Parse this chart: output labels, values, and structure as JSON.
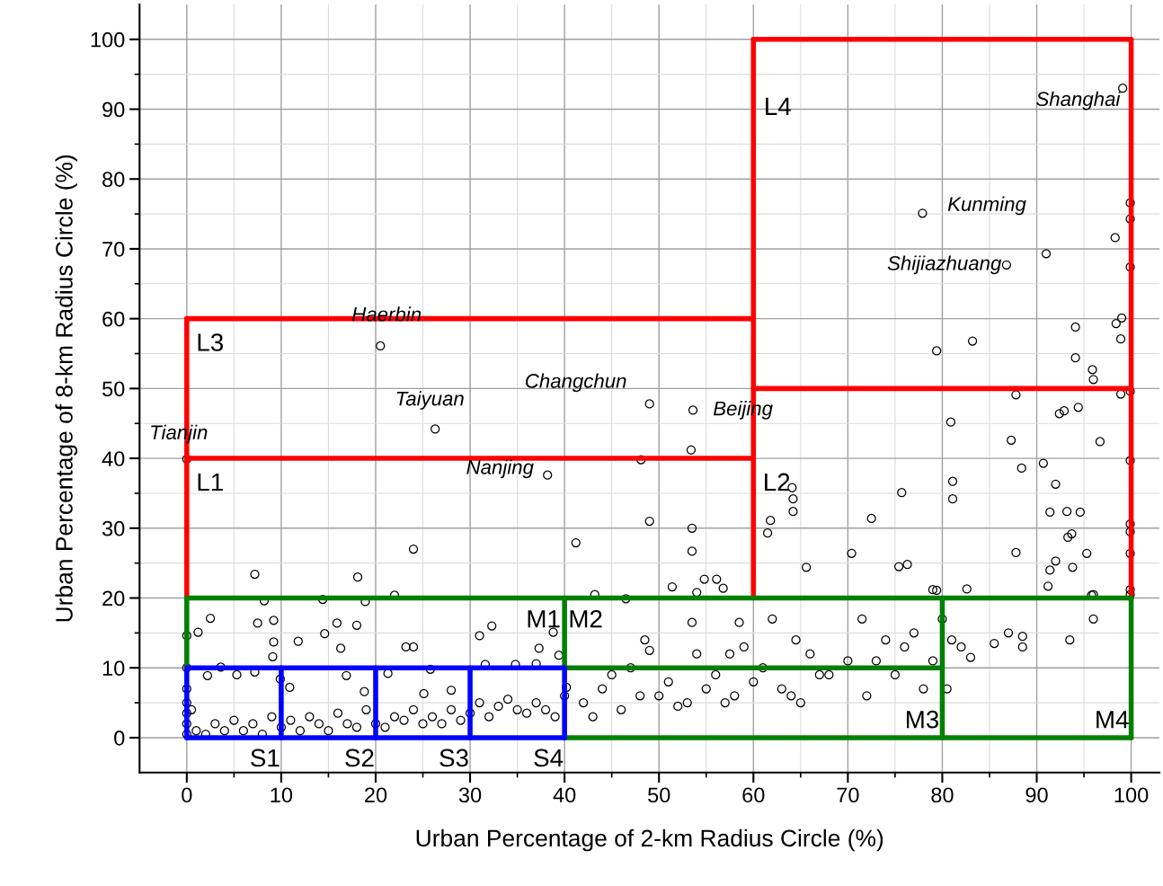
{
  "chart_data": {
    "type": "scatter",
    "xlabel": "Urban Percentage of 2-km Radius Circle (%)",
    "ylabel": "Urban Percentage of 8-km Radius Circle (%)",
    "xlim": [
      -5,
      103
    ],
    "ylim": [
      -5,
      105
    ],
    "xticks": [
      0,
      10,
      20,
      30,
      40,
      50,
      60,
      70,
      80,
      90,
      100
    ],
    "yticks": [
      0,
      10,
      20,
      30,
      40,
      50,
      60,
      70,
      80,
      90,
      100
    ],
    "grid": true,
    "series": [
      {
        "color": "#000000",
        "marker": "circle",
        "x": [
          99.1,
          99.9,
          99.9,
          98.3,
          91.0,
          86.8,
          77.9,
          99.9,
          99.0,
          98.4,
          94.1,
          98.9,
          83.2,
          79.4,
          94.1,
          95.9,
          96.0,
          98.9,
          99.9,
          87.8,
          94.4,
          92.9,
          92.4,
          80.9,
          96.7,
          87.3,
          90.7,
          99.9,
          88.4,
          81.1,
          92.0,
          81.1,
          75.7,
          91.4,
          93.2,
          94.6,
          72.5,
          99.9,
          93.7,
          93.3,
          99.9,
          95.3,
          87.8,
          70.4,
          99.9,
          92.0,
          91.4,
          93.8,
          76.3,
          75.4,
          65.6,
          91.2,
          99.9,
          99.9,
          95.8,
          79.0,
          79.4,
          82.6,
          61.8,
          61.5,
          64.1,
          64.2,
          64.2,
          53.5,
          49.0,
          48.1,
          53.4,
          53.6,
          49.0,
          41.2,
          53.5,
          54.8,
          56.1,
          56.8,
          51.4,
          54.0,
          43.2,
          46.5,
          20.5,
          26.3,
          38.2,
          0.0,
          24.0,
          7.2,
          18.1,
          22.0,
          8.2,
          18.9,
          14.4,
          2.5,
          7.5,
          9.2,
          15.9,
          18.0,
          14.6,
          11.8,
          9.2,
          1.2,
          0.0,
          23.2,
          24.0,
          32.3,
          31.0,
          16.3,
          37.3,
          38.8,
          9.1,
          7.2,
          3.6,
          2.2,
          5.3,
          9.9,
          10.9,
          16.9,
          18.8,
          21.3,
          25.1,
          25.8,
          28.0,
          31.6,
          34.8,
          37.0,
          39.4,
          40.2,
          1,
          2,
          3,
          4,
          5,
          6,
          7,
          8,
          9,
          10,
          11,
          12,
          13,
          14,
          15,
          16,
          17,
          18,
          19,
          20,
          21,
          22,
          23,
          24,
          25,
          26,
          27,
          28,
          29,
          30,
          31,
          32,
          33,
          34,
          35,
          36,
          37,
          38,
          39,
          40,
          0,
          0,
          0,
          0,
          0,
          0,
          0.5,
          42,
          43,
          44,
          45,
          46,
          47,
          48,
          48.5,
          49,
          50,
          51,
          52,
          53,
          53.5,
          54,
          55,
          56,
          57,
          57.5,
          58,
          58.5,
          59,
          60,
          61,
          62,
          63,
          64,
          64.5,
          65,
          66,
          67,
          68,
          70,
          71.5,
          72,
          73,
          74,
          75,
          76,
          77,
          78,
          79,
          80.5,
          80,
          81,
          82,
          83,
          85.5,
          87,
          88.5,
          88.5,
          93.5,
          96,
          96
        ],
        "values": [
          93.0,
          76.6,
          74.3,
          71.6,
          69.3,
          67.7,
          75.1,
          67.4,
          60.1,
          59.3,
          58.8,
          57.1,
          56.8,
          55.4,
          54.4,
          52.7,
          51.3,
          49.2,
          49.6,
          49.1,
          47.3,
          46.8,
          46.4,
          45.2,
          42.4,
          42.6,
          39.3,
          39.7,
          38.6,
          36.7,
          36.3,
          34.2,
          35.1,
          32.3,
          32.4,
          32.3,
          31.4,
          30.6,
          29.2,
          28.7,
          29.5,
          26.4,
          26.5,
          26.4,
          26.4,
          25.3,
          24.0,
          24.4,
          24.8,
          24.5,
          24.4,
          21.7,
          21.2,
          20.5,
          20.4,
          21.2,
          21.1,
          21.3,
          31.1,
          29.3,
          35.8,
          34.2,
          32.4,
          30.0,
          31.0,
          39.8,
          41.2,
          46.9,
          47.8,
          27.9,
          26.7,
          22.7,
          22.7,
          21.4,
          21.6,
          20.8,
          20.5,
          19.9,
          56.1,
          44.2,
          37.6,
          39.9,
          27.0,
          23.4,
          23.0,
          20.4,
          19.6,
          19.5,
          19.8,
          17.1,
          16.4,
          16.8,
          16.4,
          16.1,
          14.9,
          13.8,
          13.7,
          15.1,
          14.6,
          13.0,
          13.0,
          16.0,
          14.6,
          12.8,
          12.8,
          15.1,
          11.6,
          9.4,
          10.1,
          8.9,
          9.0,
          8.4,
          7.2,
          8.9,
          6.6,
          9.2,
          6.3,
          9.8,
          6.8,
          10.5,
          10.5,
          10.6,
          11.8,
          7.2,
          1,
          0.5,
          2,
          1,
          2.5,
          1,
          2,
          0.5,
          3,
          1.5,
          2.5,
          1,
          3,
          2,
          1,
          3.5,
          2,
          1.5,
          4,
          2,
          1.5,
          3,
          2.5,
          4,
          2,
          3,
          2,
          4,
          2.5,
          3.5,
          5,
          3,
          4.5,
          5.5,
          4,
          3.5,
          5,
          4,
          3,
          6,
          0.5,
          2,
          3.5,
          5,
          7,
          10,
          4,
          5,
          3,
          7,
          9,
          4,
          10,
          6,
          14,
          12.5,
          6,
          8,
          4.5,
          5,
          16.5,
          12,
          7,
          9,
          5,
          12,
          6,
          16.5,
          13,
          8,
          10,
          17,
          7,
          6,
          14,
          5,
          12,
          9,
          9,
          11,
          17,
          6,
          11,
          14,
          9,
          13,
          15,
          7,
          11,
          7,
          17,
          14,
          13,
          11.5,
          13.5,
          15,
          14.5,
          13,
          14,
          17,
          20.5
        ]
      },
      {
        "type": "line",
        "color": "#ff0000",
        "x": [
          0,
          0
        ],
        "values": [
          20,
          60
        ]
      },
      {
        "type": "line",
        "color": "#ff0000",
        "x": [
          0,
          60
        ],
        "values": [
          40,
          40
        ]
      },
      {
        "type": "line",
        "color": "#ff0000",
        "x": [
          0,
          60
        ],
        "values": [
          60,
          60
        ]
      },
      {
        "type": "line",
        "color": "#ff0000",
        "x": [
          60,
          60
        ],
        "values": [
          20,
          100
        ]
      },
      {
        "type": "line",
        "color": "#ff0000",
        "x": [
          60,
          100
        ],
        "values": [
          50,
          50
        ]
      },
      {
        "type": "line",
        "color": "#ff0000",
        "x": [
          60,
          100
        ],
        "values": [
          100,
          100
        ]
      },
      {
        "type": "line",
        "color": "#ff0000",
        "x": [
          100,
          100
        ],
        "values": [
          20,
          100
        ]
      },
      {
        "type": "line",
        "color": "#008000",
        "x": [
          0,
          100
        ],
        "values": [
          20,
          20
        ]
      },
      {
        "type": "line",
        "color": "#008000",
        "x": [
          0,
          0
        ],
        "values": [
          10,
          20
        ]
      },
      {
        "type": "line",
        "color": "#008000",
        "x": [
          40,
          40
        ],
        "values": [
          10,
          20
        ]
      },
      {
        "type": "line",
        "color": "#008000",
        "x": [
          40,
          80
        ],
        "values": [
          10,
          10
        ]
      },
      {
        "type": "line",
        "color": "#008000",
        "x": [
          80,
          80
        ],
        "values": [
          0,
          20
        ]
      },
      {
        "type": "line",
        "color": "#008000",
        "x": [
          40,
          100
        ],
        "values": [
          0,
          0
        ]
      },
      {
        "type": "line",
        "color": "#008000",
        "x": [
          100,
          100
        ],
        "values": [
          0,
          20
        ]
      },
      {
        "type": "line",
        "color": "#0000ff",
        "x": [
          0,
          40
        ],
        "values": [
          10,
          10
        ]
      },
      {
        "type": "line",
        "color": "#0000ff",
        "x": [
          0,
          40
        ],
        "values": [
          0,
          0
        ]
      },
      {
        "type": "line",
        "color": "#0000ff",
        "x": [
          0,
          0
        ],
        "values": [
          0,
          10
        ]
      },
      {
        "type": "line",
        "color": "#0000ff",
        "x": [
          10,
          10
        ],
        "values": [
          0,
          10
        ]
      },
      {
        "type": "line",
        "color": "#0000ff",
        "x": [
          20,
          20
        ],
        "values": [
          0,
          10
        ]
      },
      {
        "type": "line",
        "color": "#0000ff",
        "x": [
          30,
          30
        ],
        "values": [
          0,
          10
        ]
      },
      {
        "type": "line",
        "color": "#0000ff",
        "x": [
          40,
          40
        ],
        "values": [
          0,
          10
        ]
      }
    ],
    "annotations": [
      {
        "text": "Shanghai",
        "x": 99.1,
        "y": 93.0
      },
      {
        "text": "Kunming",
        "x": 77.9,
        "y": 75.1
      },
      {
        "text": "Shijiazhuang",
        "x": 86.8,
        "y": 67.7
      },
      {
        "text": "Haerbin",
        "x": 20.5,
        "y": 56.1
      },
      {
        "text": "Taiyuan",
        "x": 26.3,
        "y": 44.2
      },
      {
        "text": "Changchun",
        "x": 49.0,
        "y": 47.8
      },
      {
        "text": "Beijing",
        "x": 53.6,
        "y": 46.9
      },
      {
        "text": "Nanjing",
        "x": 38.2,
        "y": 37.6
      },
      {
        "text": "Tianjin",
        "x": 0.0,
        "y": 39.9
      },
      "L4",
      "L3",
      "L1",
      "L2",
      "M1",
      "M2",
      "M3",
      "M4",
      "S1",
      "S2",
      "S3",
      "S4"
    ]
  }
}
